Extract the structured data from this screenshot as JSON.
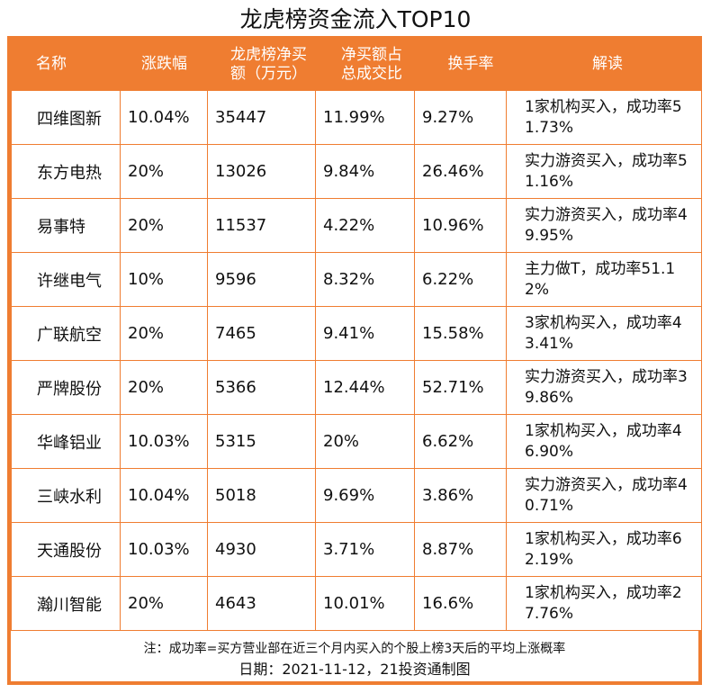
{
  "title": "龙虎榜资金流入TOP10",
  "header": {
    "name": "名称",
    "change": "涨跌幅",
    "net_buy": "龙虎榜净买额（万元）",
    "ratio": "净买额占总成交比",
    "turnover": "换手率",
    "comment": "解读"
  },
  "rows": [
    {
      "name": "四维图新",
      "change": "10.04%",
      "net_buy": "35447",
      "ratio": "11.99%",
      "turnover": "9.27%",
      "comment": "1家机构买入，成功率51.73%"
    },
    {
      "name": "东方电热",
      "change": "20%",
      "net_buy": "13026",
      "ratio": "9.84%",
      "turnover": "26.46%",
      "comment": "实力游资买入，成功率51.16%"
    },
    {
      "name": "易事特",
      "change": "20%",
      "net_buy": "11537",
      "ratio": "4.22%",
      "turnover": "10.96%",
      "comment": "实力游资买入，成功率49.95%"
    },
    {
      "name": "许继电气",
      "change": "10%",
      "net_buy": "9596",
      "ratio": "8.32%",
      "turnover": "6.22%",
      "comment": "主力做T，成功率51.12%"
    },
    {
      "name": "广联航空",
      "change": "20%",
      "net_buy": "7465",
      "ratio": "9.41%",
      "turnover": "15.58%",
      "comment": "3家机构买入，成功率43.41%"
    },
    {
      "name": "严牌股份",
      "change": "20%",
      "net_buy": "5366",
      "ratio": "12.44%",
      "turnover": "52.71%",
      "comment": "实力游资买入，成功率39.86%"
    },
    {
      "name": "华峰铝业",
      "change": "10.03%",
      "net_buy": "5315",
      "ratio": "20%",
      "turnover": "6.62%",
      "comment": "1家机构买入，成功率46.90%"
    },
    {
      "name": "三峡水利",
      "change": "10.04%",
      "net_buy": "5018",
      "ratio": "9.69%",
      "turnover": "3.86%",
      "comment": "实力游资买入，成功率40.71%"
    },
    {
      "name": "天通股份",
      "change": "10.03%",
      "net_buy": "4930",
      "ratio": "3.71%",
      "turnover": "8.87%",
      "comment": "1家机构买入，成功率62.19%"
    },
    {
      "name": "瀚川智能",
      "change": "20%",
      "net_buy": "4643",
      "ratio": "10.01%",
      "turnover": "16.6%",
      "comment": "1家机构买入，成功率27.76%"
    }
  ],
  "footnote": "注：成功率=买方营业部在近三个月内买入的个股上榜3天后的平均上涨概率",
  "credit": "日期：2021-11-12，21投资通制图",
  "colors": {
    "accent": "#ef7d31",
    "background": "#ffffff",
    "text": "#111111"
  }
}
